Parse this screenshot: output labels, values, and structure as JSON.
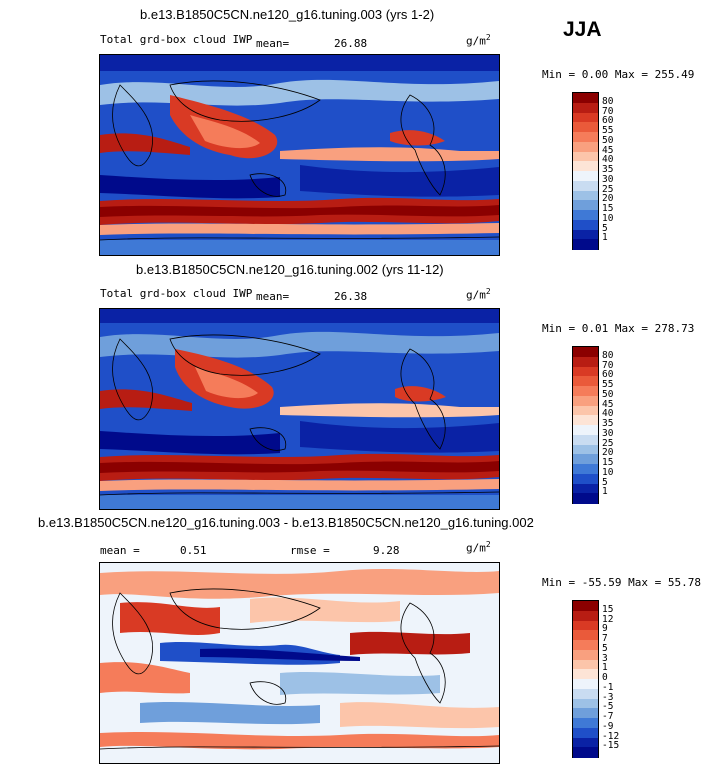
{
  "season": "JJA",
  "panels": [
    {
      "title": "b.e13.B1850C5CN.ne120_g16.tuning.003 (yrs 1-2)",
      "variable": "Total grd-box cloud IWP",
      "stat1_label": "mean=",
      "stat1_value": "26.88",
      "stat2_label": "",
      "stat2_value": "",
      "units_base": "g/m",
      "units_exp": "2",
      "minmax": "Min =   0.00  Max = 255.49",
      "colorbar": {
        "labels": [
          "80",
          "70",
          "60",
          "55",
          "50",
          "45",
          "40",
          "35",
          "30",
          "25",
          "20",
          "15",
          "10",
          "5",
          "1"
        ],
        "colors": [
          "#8b0000",
          "#b81d13",
          "#d93a24",
          "#ea5a3a",
          "#f57c5a",
          "#f9a07f",
          "#fcc5aa",
          "#fde4d6",
          "#eef4fb",
          "#c9dcf1",
          "#9dc1e6",
          "#6f9fdb",
          "#3f79d6",
          "#1f4fc8",
          "#0a22a5",
          "#000a8b"
        ]
      }
    },
    {
      "title": "b.e13.B1850C5CN.ne120_g16.tuning.002 (yrs 11-12)",
      "variable": "Total grd-box cloud IWP",
      "stat1_label": "mean=",
      "stat1_value": "26.38",
      "stat2_label": "",
      "stat2_value": "",
      "units_base": "g/m",
      "units_exp": "2",
      "minmax": "Min =   0.01  Max = 278.73",
      "colorbar": {
        "labels": [
          "80",
          "70",
          "60",
          "55",
          "50",
          "45",
          "40",
          "35",
          "30",
          "25",
          "20",
          "15",
          "10",
          "5",
          "1"
        ],
        "colors": [
          "#8b0000",
          "#b81d13",
          "#d93a24",
          "#ea5a3a",
          "#f57c5a",
          "#f9a07f",
          "#fcc5aa",
          "#fde4d6",
          "#eef4fb",
          "#c9dcf1",
          "#9dc1e6",
          "#6f9fdb",
          "#3f79d6",
          "#1f4fc8",
          "#0a22a5",
          "#000a8b"
        ]
      }
    },
    {
      "title": "b.e13.B1850C5CN.ne120_g16.tuning.003 - b.e13.B1850C5CN.ne120_g16.tuning.002",
      "variable": "",
      "stat1_label": "mean =",
      "stat1_value": "0.51",
      "stat2_label": "rmse =",
      "stat2_value": "9.28",
      "units_base": "g/m",
      "units_exp": "2",
      "minmax": "Min = -55.59  Max =  55.78",
      "colorbar": {
        "labels": [
          "15",
          "12",
          "9",
          "7",
          "5",
          "3",
          "1",
          "0",
          "-1",
          "-3",
          "-5",
          "-7",
          "-9",
          "-12",
          "-15"
        ],
        "colors": [
          "#8b0000",
          "#b81d13",
          "#d93a24",
          "#ea5a3a",
          "#f57c5a",
          "#f9a07f",
          "#fcc5aa",
          "#fde4d6",
          "#eef4fb",
          "#c9dcf1",
          "#9dc1e6",
          "#6f9fdb",
          "#3f79d6",
          "#1f4fc8",
          "#0a22a5",
          "#000a8b"
        ]
      }
    }
  ],
  "chart_data": [
    {
      "type": "heatmap",
      "title": "b.e13.B1850C5CN.ne120_g16.tuning.003 (yrs 1-2)",
      "subtitle": "Total grd-box cloud IWP",
      "season": "JJA",
      "units": "g/m2",
      "mean": 26.88,
      "min": 0.0,
      "max": 255.49,
      "contour_levels": [
        1,
        5,
        10,
        15,
        20,
        25,
        30,
        35,
        40,
        45,
        50,
        55,
        60,
        70,
        80
      ]
    },
    {
      "type": "heatmap",
      "title": "b.e13.B1850C5CN.ne120_g16.tuning.002 (yrs 11-12)",
      "subtitle": "Total grd-box cloud IWP",
      "season": "JJA",
      "units": "g/m2",
      "mean": 26.38,
      "min": 0.01,
      "max": 278.73,
      "contour_levels": [
        1,
        5,
        10,
        15,
        20,
        25,
        30,
        35,
        40,
        45,
        50,
        55,
        60,
        70,
        80
      ]
    },
    {
      "type": "heatmap",
      "title": "b.e13.B1850C5CN.ne120_g16.tuning.003 - b.e13.B1850C5CN.ne120_g16.tuning.002",
      "season": "JJA",
      "units": "g/m2",
      "mean": 0.51,
      "rmse": 9.28,
      "min": -55.59,
      "max": 55.78,
      "contour_levels": [
        -15,
        -12,
        -9,
        -7,
        -5,
        -3,
        -1,
        0,
        1,
        3,
        5,
        7,
        9,
        12,
        15
      ]
    }
  ]
}
